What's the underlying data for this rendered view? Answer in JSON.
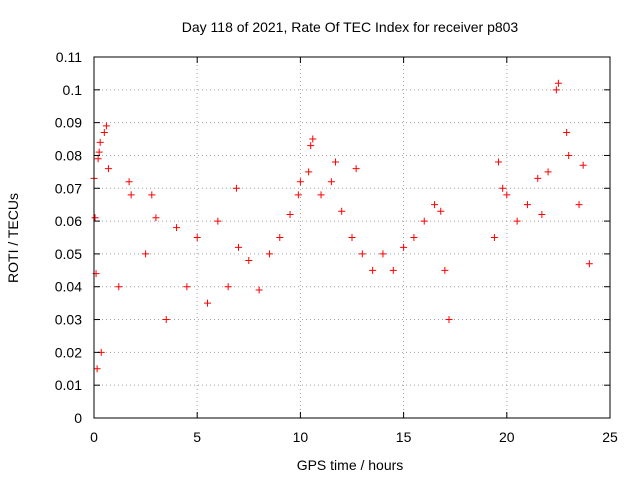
{
  "chart_data": {
    "type": "scatter",
    "title": "Day 118 of 2021, Rate Of TEC Index for receiver p803",
    "xlabel": "GPS time / hours",
    "ylabel": "ROTI / TECUs",
    "xlim": [
      0,
      25
    ],
    "ylim": [
      0,
      0.11
    ],
    "x_ticks": [
      "0",
      "5",
      "10",
      "15",
      "20",
      "25"
    ],
    "y_ticks": [
      "0",
      "0.01",
      "0.02",
      "0.03",
      "0.04",
      "0.05",
      "0.06",
      "0.07",
      "0.08",
      "0.09",
      "0.1",
      "0.11"
    ],
    "grid": true,
    "marker": "+",
    "marker_color": "#ff0000",
    "series": [
      {
        "x": [
          0.0,
          0.05,
          0.1,
          0.15,
          0.2,
          0.25,
          0.3,
          0.35,
          0.5,
          0.6,
          0.7,
          1.2,
          1.7,
          1.8,
          2.5,
          2.8,
          3.0,
          3.5,
          4.0,
          4.5,
          5.0,
          5.5,
          6.0,
          6.5,
          6.9,
          7.0,
          7.5,
          8.0,
          8.5,
          9.0,
          9.5,
          9.9,
          10.0,
          10.4,
          10.5,
          10.6,
          11.0,
          11.5,
          11.7,
          12.0,
          12.5,
          12.7,
          13.0,
          13.5,
          14.0,
          14.5,
          15.0,
          15.5,
          16.0,
          16.5,
          16.8,
          17.0,
          17.2,
          19.4,
          19.6,
          19.8,
          20.0,
          20.5,
          21.0,
          21.5,
          21.7,
          22.0,
          22.4,
          22.5,
          22.9,
          23.0,
          23.5,
          23.7,
          24.0
        ],
        "y": [
          0.073,
          0.061,
          0.044,
          0.015,
          0.079,
          0.081,
          0.084,
          0.02,
          0.087,
          0.089,
          0.076,
          0.04,
          0.072,
          0.068,
          0.05,
          0.068,
          0.061,
          0.03,
          0.058,
          0.04,
          0.055,
          0.035,
          0.06,
          0.04,
          0.07,
          0.052,
          0.048,
          0.039,
          0.05,
          0.055,
          0.062,
          0.068,
          0.072,
          0.075,
          0.083,
          0.085,
          0.068,
          0.072,
          0.078,
          0.063,
          0.055,
          0.076,
          0.05,
          0.045,
          0.05,
          0.045,
          0.052,
          0.055,
          0.06,
          0.065,
          0.063,
          0.045,
          0.03,
          0.055,
          0.078,
          0.07,
          0.068,
          0.06,
          0.065,
          0.073,
          0.062,
          0.075,
          0.1,
          0.102,
          0.087,
          0.08,
          0.065,
          0.077,
          0.047
        ]
      }
    ]
  }
}
